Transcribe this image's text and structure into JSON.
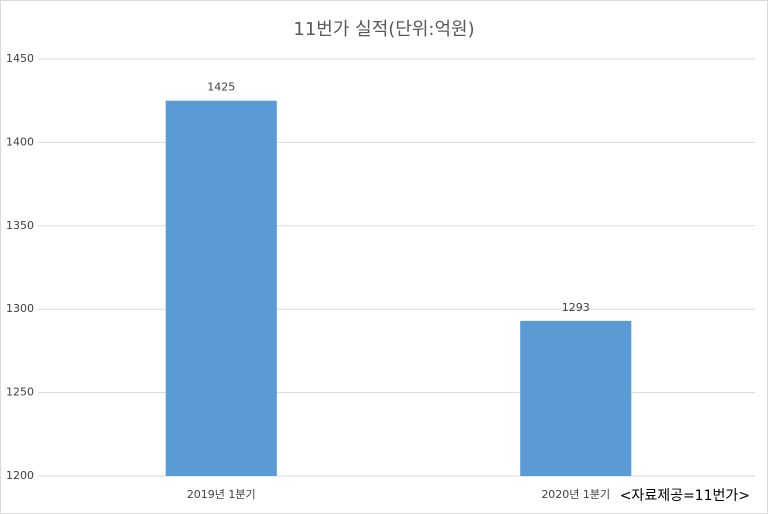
{
  "chart_data": {
    "type": "bar",
    "title": "11번가 실적(단위:억원)",
    "categories": [
      "2019년 1분기",
      "2020년 1분기"
    ],
    "values": [
      1425,
      1293
    ],
    "color": "#5b9bd5",
    "ylim": [
      1200,
      1450
    ],
    "yticks": [
      1200,
      1250,
      1300,
      1350,
      1400,
      1450
    ],
    "grid": true,
    "annotation": "<자료제공=11번가>"
  }
}
